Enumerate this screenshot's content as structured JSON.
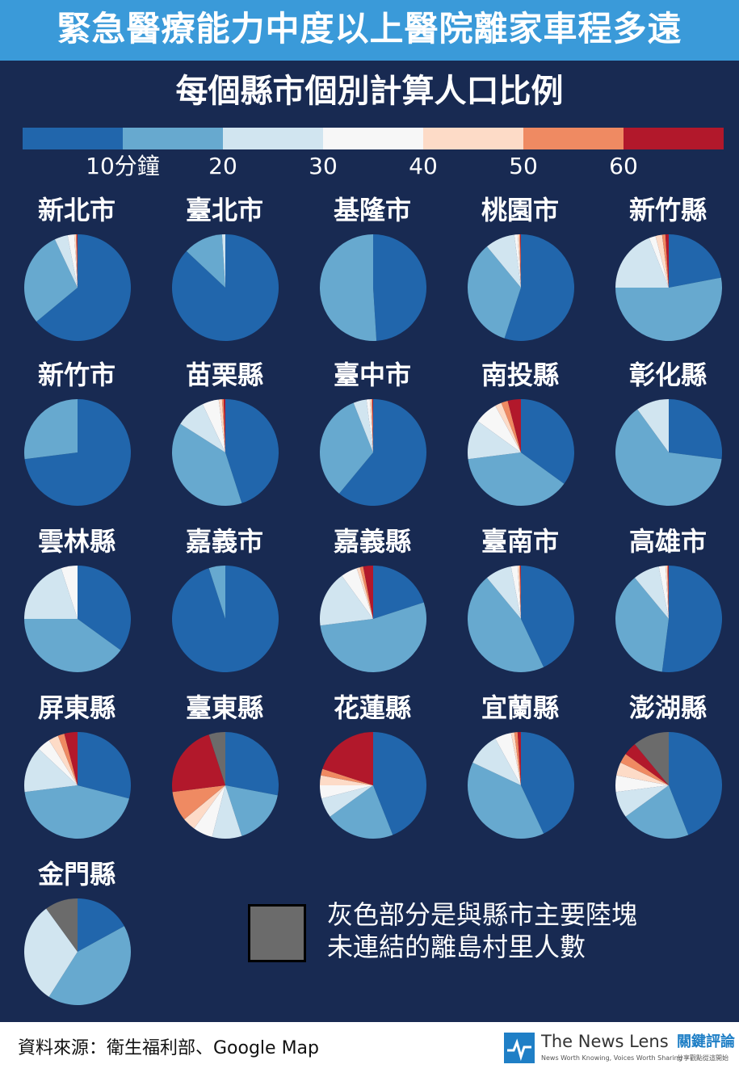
{
  "title": "緊急醫療能力中度以上醫院離家車程多遠",
  "subtitle": "每個縣市個別計算人口比例",
  "colors": {
    "background": "#182a52",
    "banner": "#3a9ad9",
    "bins": [
      "#2166ac",
      "#67a9cf",
      "#d1e5f0",
      "#f7f7f7",
      "#fddbc7",
      "#ef8a62",
      "#b2182b"
    ],
    "offshore": "#6b6b6b"
  },
  "scale_labels": [
    "10分鐘",
    "20",
    "30",
    "40",
    "50",
    "60"
  ],
  "legend_note": [
    "灰色部分是與縣市主要陸塊",
    "未連結的離島村里人數"
  ],
  "source": "資料來源：衛生福利部、Google Map",
  "logo": {
    "name": "The News Lens",
    "name_cn": "關鍵評論",
    "tagline": "News Worth Knowing, Voices Worth Sharing",
    "tagline_cn": "分享觀點從這開始",
    "icon": "news-lens-logo-icon"
  },
  "chart_data": {
    "type": "pie",
    "title": "緊急醫療能力中度以上醫院離家車程多遠",
    "subtitle": "每個縣市個別計算人口比例",
    "bins": [
      "0-10",
      "10-20",
      "20-30",
      "30-40",
      "40-50",
      "50-60",
      "60+",
      "offshore"
    ],
    "bin_unit": "分鐘",
    "series": [
      {
        "name": "新北市",
        "values": [
          0.64,
          0.29,
          0.04,
          0.02,
          0.005,
          0.003,
          0.002,
          0
        ]
      },
      {
        "name": "臺北市",
        "values": [
          0.87,
          0.12,
          0.01,
          0,
          0,
          0,
          0,
          0
        ]
      },
      {
        "name": "基隆市",
        "values": [
          0.49,
          0.51,
          0,
          0,
          0,
          0,
          0,
          0
        ]
      },
      {
        "name": "桃園市",
        "values": [
          0.55,
          0.34,
          0.09,
          0.01,
          0.005,
          0.003,
          0.002,
          0
        ]
      },
      {
        "name": "新竹縣",
        "values": [
          0.22,
          0.53,
          0.19,
          0.02,
          0.02,
          0.01,
          0.01,
          0
        ]
      },
      {
        "name": "新竹市",
        "values": [
          0.73,
          0.27,
          0,
          0,
          0,
          0,
          0,
          0
        ]
      },
      {
        "name": "苗栗縣",
        "values": [
          0.45,
          0.39,
          0.09,
          0.05,
          0.01,
          0.005,
          0.005,
          0
        ]
      },
      {
        "name": "臺中市",
        "values": [
          0.61,
          0.33,
          0.04,
          0.01,
          0.005,
          0.003,
          0.002,
          0
        ]
      },
      {
        "name": "南投縣",
        "values": [
          0.35,
          0.38,
          0.12,
          0.07,
          0.02,
          0.02,
          0.04,
          0
        ]
      },
      {
        "name": "彰化縣",
        "values": [
          0.27,
          0.63,
          0.1,
          0,
          0,
          0,
          0,
          0
        ]
      },
      {
        "name": "雲林縣",
        "values": [
          0.35,
          0.4,
          0.2,
          0.05,
          0,
          0,
          0,
          0
        ]
      },
      {
        "name": "嘉義市",
        "values": [
          0.95,
          0.05,
          0,
          0,
          0,
          0,
          0,
          0
        ]
      },
      {
        "name": "嘉義縣",
        "values": [
          0.2,
          0.53,
          0.17,
          0.05,
          0.01,
          0.01,
          0.03,
          0
        ]
      },
      {
        "name": "臺南市",
        "values": [
          0.43,
          0.46,
          0.08,
          0.02,
          0.005,
          0.003,
          0.002,
          0
        ]
      },
      {
        "name": "高雄市",
        "values": [
          0.52,
          0.37,
          0.08,
          0.02,
          0.005,
          0.003,
          0.002,
          0
        ]
      },
      {
        "name": "屏東縣",
        "values": [
          0.29,
          0.44,
          0.14,
          0.04,
          0.03,
          0.02,
          0.04,
          0
        ]
      },
      {
        "name": "臺東縣",
        "values": [
          0.28,
          0.17,
          0.09,
          0.06,
          0.04,
          0.09,
          0.22,
          0.05
        ]
      },
      {
        "name": "花蓮縣",
        "values": [
          0.44,
          0.21,
          0.06,
          0.04,
          0.03,
          0.02,
          0.2,
          0
        ]
      },
      {
        "name": "宜蘭縣",
        "values": [
          0.43,
          0.39,
          0.1,
          0.05,
          0.01,
          0.01,
          0.01,
          0
        ]
      },
      {
        "name": "澎湖縣",
        "values": [
          0.44,
          0.21,
          0.08,
          0.05,
          0.04,
          0.03,
          0.04,
          0.11
        ]
      },
      {
        "name": "金門縣",
        "values": [
          0.17,
          0.42,
          0.31,
          0,
          0,
          0,
          0,
          0.1
        ]
      }
    ]
  }
}
